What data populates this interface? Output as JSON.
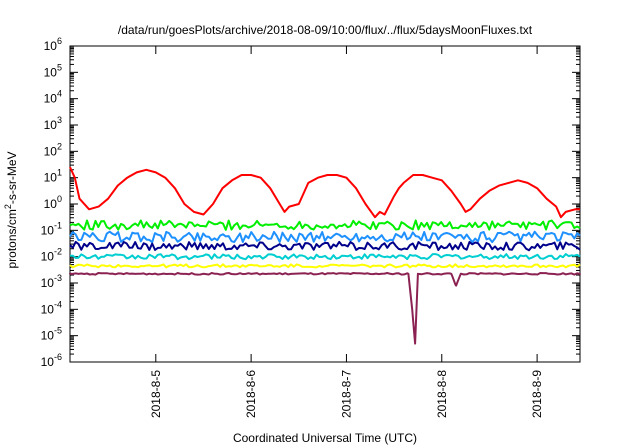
{
  "chart_data": {
    "type": "line",
    "title": "/data/run/goesPlots/archive/2018-08-09/10:00/flux/../flux/5daysMoonFluxes.txt",
    "xlabel": "Coordinated Universal Time (UTC)",
    "ylabel": {
      "base": "protons/cm",
      "sup": "2",
      "rest": "-s-sr-MeV"
    },
    "xlim": [
      4.1,
      9.45
    ],
    "ylim_exp": [
      -6,
      6
    ],
    "yscale": "log",
    "grid": false,
    "legend": "none",
    "y_ticks": [
      {
        "base": "10",
        "exp": "-6"
      },
      {
        "base": "10",
        "exp": "-5"
      },
      {
        "base": "10",
        "exp": "-4"
      },
      {
        "base": "10",
        "exp": "-3"
      },
      {
        "base": "10",
        "exp": "-2"
      },
      {
        "base": "10",
        "exp": "-1"
      },
      {
        "base": "10",
        "exp": "0"
      },
      {
        "base": "10",
        "exp": "1"
      },
      {
        "base": "10",
        "exp": "2"
      },
      {
        "base": "10",
        "exp": "3"
      },
      {
        "base": "10",
        "exp": "4"
      },
      {
        "base": "10",
        "exp": "5"
      },
      {
        "base": "10",
        "exp": "6"
      }
    ],
    "x_ticks": [
      {
        "label": "2018-8-5",
        "day": 5
      },
      {
        "label": "2018-8-6",
        "day": 6
      },
      {
        "label": "2018-8-7",
        "day": 7
      },
      {
        "label": "2018-8-8",
        "day": 8
      },
      {
        "label": "2018-8-9",
        "day": 9
      }
    ],
    "series": [
      {
        "color": "#ff0000",
        "day": [
          4.1,
          4.15,
          4.2,
          4.3,
          4.4,
          4.5,
          4.6,
          4.7,
          4.8,
          4.9,
          5.0,
          5.1,
          5.2,
          5.3,
          5.4,
          5.5,
          5.55,
          5.6,
          5.7,
          5.8,
          5.9,
          6.0,
          6.1,
          6.2,
          6.3,
          6.35,
          6.4,
          6.5,
          6.6,
          6.7,
          6.8,
          6.9,
          7.0,
          7.1,
          7.2,
          7.3,
          7.35,
          7.4,
          7.5,
          7.55,
          7.6,
          7.7,
          7.8,
          7.9,
          8.0,
          8.1,
          8.2,
          8.25,
          8.3,
          8.4,
          8.5,
          8.6,
          8.7,
          8.8,
          8.9,
          9.0,
          9.1,
          9.2,
          9.25,
          9.3,
          9.4,
          9.45
        ],
        "log10": [
          1.4,
          1.0,
          0.2,
          -0.2,
          -0.1,
          0.2,
          0.7,
          1.0,
          1.2,
          1.3,
          1.2,
          1.0,
          0.6,
          0.0,
          -0.3,
          -0.4,
          -0.2,
          0.0,
          0.6,
          0.9,
          1.1,
          1.1,
          1.0,
          0.6,
          0.0,
          -0.3,
          -0.1,
          0.0,
          0.8,
          1.0,
          1.1,
          1.1,
          1.0,
          0.6,
          0.0,
          -0.5,
          -0.3,
          -0.4,
          0.3,
          0.6,
          0.8,
          1.1,
          1.1,
          1.0,
          0.9,
          0.5,
          0.0,
          -0.3,
          -0.2,
          0.2,
          0.5,
          0.7,
          0.8,
          0.9,
          0.8,
          0.6,
          0.2,
          -0.1,
          -0.5,
          -0.3,
          -0.2,
          -0.2
        ]
      },
      {
        "color": "#00ee00",
        "day": [
          4.1,
          9.45
        ],
        "log10": [
          -0.8,
          -0.8
        ],
        "noise": 0.18
      },
      {
        "color": "#1e90ff",
        "day": [
          4.1,
          9.45
        ],
        "log10": [
          -1.25,
          -1.25
        ],
        "noise": 0.2
      },
      {
        "color": "#00008b",
        "day": [
          4.1,
          9.45
        ],
        "log10": [
          -1.6,
          -1.6
        ],
        "noise": 0.16
      },
      {
        "color": "#00ced1",
        "day": [
          4.1,
          9.45
        ],
        "log10": [
          -2.0,
          -2.0
        ],
        "noise": 0.1
      },
      {
        "color": "#ffff00",
        "day": [
          4.1,
          9.45
        ],
        "log10": [
          -2.35,
          -2.35
        ],
        "noise": 0.06
      },
      {
        "color": "#8b2252",
        "day": [
          4.1,
          7.65,
          7.69,
          7.72,
          7.75,
          8.1,
          8.15,
          8.2,
          9.45
        ],
        "log10": [
          -2.65,
          -2.65,
          -4.0,
          -5.3,
          -2.65,
          -2.65,
          -3.1,
          -2.65,
          -2.65
        ],
        "noise": 0.03
      }
    ]
  }
}
